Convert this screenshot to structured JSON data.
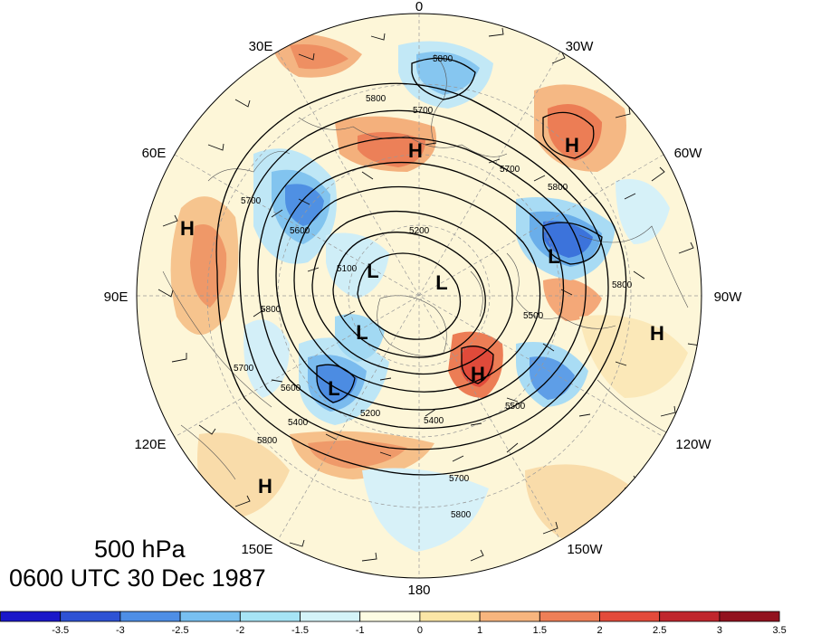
{
  "map": {
    "longitude_labels": {
      "top": "0",
      "upper_left": "30E",
      "upper_right": "30W",
      "left_upper": "60E",
      "right_upper": "60W",
      "left": "90E",
      "right": "90W",
      "left_lower": "120E",
      "right_lower": "120W",
      "lower_left": "150E",
      "lower_right": "150W",
      "bottom": "180"
    },
    "pressure_centers": [
      {
        "label": "H",
        "name": "high-center-north-atlantic"
      },
      {
        "label": "H",
        "name": "high-center-europe"
      },
      {
        "label": "H",
        "name": "high-center-central-asia"
      },
      {
        "label": "H",
        "name": "high-center-north-america"
      },
      {
        "label": "H",
        "name": "high-center-north-pacific"
      },
      {
        "label": "H",
        "name": "high-center-arctic"
      },
      {
        "label": "L",
        "name": "low-center-labrador"
      },
      {
        "label": "L",
        "name": "low-center-barents"
      },
      {
        "label": "L",
        "name": "low-center-pole"
      },
      {
        "label": "L",
        "name": "low-center-siberia"
      },
      {
        "label": "L",
        "name": "low-center-east-siberia"
      }
    ],
    "contour_labels": [
      "5800",
      "5700",
      "5800",
      "5700",
      "5800",
      "5200",
      "5100",
      "5600",
      "5700",
      "5800",
      "5600",
      "5400",
      "5500",
      "5200",
      "5400",
      "5800",
      "5700",
      "5800",
      "5500",
      "5700",
      "5800"
    ]
  },
  "captions": {
    "level": "500 hPa",
    "time": "0600 UTC 30 Dec 1987"
  },
  "colorbar": {
    "colors": [
      "#1a17c9",
      "#2e52d4",
      "#4e8ee6",
      "#78c0f0",
      "#a6e4f5",
      "#d4f3f8",
      "#fdfce3",
      "#fbe6a6",
      "#f7b57e",
      "#ee7f57",
      "#e34b3b",
      "#c0262d",
      "#92121e"
    ],
    "tick_labels": [
      "-3.5",
      "-3",
      "-2.5",
      "-2",
      "-1.5",
      "-1",
      "0",
      "1",
      "1.5",
      "2",
      "2.5",
      "3",
      "3.5"
    ]
  }
}
